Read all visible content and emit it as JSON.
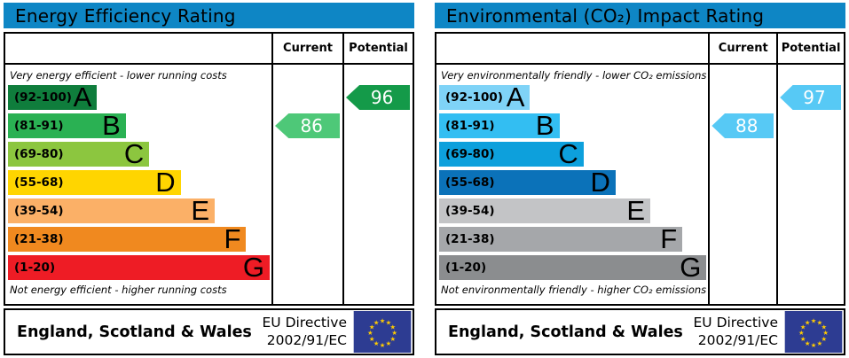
{
  "chart_data": [
    {
      "type": "bar",
      "title": "Energy Efficiency Rating",
      "categories": [
        "A (92-100)",
        "B (81-91)",
        "C (69-80)",
        "D (55-68)",
        "E (39-54)",
        "F (21-38)",
        "G (1-20)"
      ],
      "band_widths_pct": [
        34,
        45,
        54,
        66,
        79,
        91,
        100
      ],
      "top_caption": "Very energy efficient - lower running costs",
      "bottom_caption": "Not energy efficient - higher running costs",
      "current": 86,
      "current_band": "B",
      "potential": 96,
      "potential_band": "A",
      "columns": [
        "Current",
        "Potential"
      ],
      "region": "England, Scotland & Wales",
      "directive": "EU Directive 2002/91/EC"
    },
    {
      "type": "bar",
      "title": "Environmental (CO₂) Impact Rating",
      "categories": [
        "A (92-100)",
        "B (81-91)",
        "C (69-80)",
        "D (55-68)",
        "E (39-54)",
        "F (21-38)",
        "G (1-20)"
      ],
      "band_widths_pct": [
        34,
        45,
        54,
        66,
        79,
        91,
        100
      ],
      "top_caption": "Very environmentally friendly - lower CO₂ emissions",
      "bottom_caption": "Not environmentally friendly - higher CO₂ emissions",
      "current": 88,
      "current_band": "B",
      "potential": 97,
      "potential_band": "A",
      "columns": [
        "Current",
        "Potential"
      ],
      "region": "England, Scotland & Wales",
      "directive": "EU Directive 2002/91/EC"
    }
  ],
  "panels": [
    {
      "title": "Energy Efficiency Rating",
      "header_color": "#0e86c5",
      "col_current": "Current",
      "col_potential": "Potential",
      "top_caption": "Very energy efficient - lower running costs",
      "bottom_caption": "Not energy efficient - higher running costs",
      "bands": [
        {
          "range": "(92-100)",
          "letter": "A",
          "color": "#0f7d3c",
          "width_pct": 34
        },
        {
          "range": "(81-91)",
          "letter": "B",
          "color": "#2ab153",
          "width_pct": 45
        },
        {
          "range": "(69-80)",
          "letter": "C",
          "color": "#8cc63f",
          "width_pct": 54
        },
        {
          "range": "(55-68)",
          "letter": "D",
          "color": "#ffd500",
          "width_pct": 66
        },
        {
          "range": "(39-54)",
          "letter": "E",
          "color": "#fbb067",
          "width_pct": 79
        },
        {
          "range": "(21-38)",
          "letter": "F",
          "color": "#f0891f",
          "width_pct": 91
        },
        {
          "range": "(1-20)",
          "letter": "G",
          "color": "#ee1c25",
          "width_pct": 100
        }
      ],
      "current": {
        "value": "86",
        "band_index": 1,
        "color": "#4ec878"
      },
      "potential": {
        "value": "96",
        "band_index": 0,
        "color": "#149a49"
      },
      "footer_region": "England, Scotland & Wales",
      "directive_line1": "EU Directive",
      "directive_line2": "2002/91/EC",
      "flag_blue": "#2d3c92",
      "star_yellow": "#ffcc00"
    },
    {
      "title": "Environmental (CO₂) Impact Rating",
      "header_color": "#0e86c5",
      "col_current": "Current",
      "col_potential": "Potential",
      "top_caption": "Very environmentally friendly - lower CO₂ emissions",
      "bottom_caption": "Not environmentally friendly - higher CO₂ emissions",
      "bands": [
        {
          "range": "(92-100)",
          "letter": "A",
          "color": "#7fd3f7",
          "width_pct": 34
        },
        {
          "range": "(81-91)",
          "letter": "B",
          "color": "#33bef2",
          "width_pct": 45
        },
        {
          "range": "(69-80)",
          "letter": "C",
          "color": "#0da0dc",
          "width_pct": 54
        },
        {
          "range": "(55-68)",
          "letter": "D",
          "color": "#0b72b9",
          "width_pct": 66
        },
        {
          "range": "(39-54)",
          "letter": "E",
          "color": "#c3c4c6",
          "width_pct": 79
        },
        {
          "range": "(21-38)",
          "letter": "F",
          "color": "#a5a7aa",
          "width_pct": 91
        },
        {
          "range": "(1-20)",
          "letter": "G",
          "color": "#8b8d8f",
          "width_pct": 100
        }
      ],
      "current": {
        "value": "88",
        "band_index": 1,
        "color": "#57c9f5"
      },
      "potential": {
        "value": "97",
        "band_index": 0,
        "color": "#57c9f5"
      },
      "footer_region": "England, Scotland & Wales",
      "directive_line1": "EU Directive",
      "directive_line2": "2002/91/EC",
      "flag_blue": "#2d3c92",
      "star_yellow": "#ffcc00"
    }
  ]
}
